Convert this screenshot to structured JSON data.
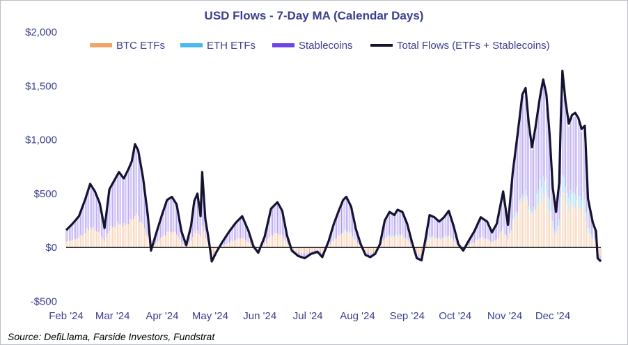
{
  "chart_data": {
    "type": "bar",
    "title": "USD Flows - 7-Day MA (Calendar Days)",
    "xlabel": "",
    "ylabel": "",
    "ylim": [
      -500,
      2000
    ],
    "yticks": [
      2000,
      1500,
      1000,
      500,
      0,
      -500
    ],
    "ytick_labels": [
      "$2,000",
      "$1,500",
      "$1,000",
      "$500",
      "$0",
      "-$500"
    ],
    "xticks": [
      "Feb '24",
      "Mar '24",
      "Apr '24",
      "May '24",
      "Jun '24",
      "Jul '24",
      "Aug '24",
      "Sep '24",
      "Oct '24",
      "Nov '24",
      "Dec '24"
    ],
    "x_start": "2024-02-01",
    "x_end": "2024-12-31",
    "stacked": true,
    "grid": false,
    "legend": "top",
    "total_flows": [
      [
        "2024-02-01",
        160
      ],
      [
        "2024-02-05",
        220
      ],
      [
        "2024-02-09",
        290
      ],
      [
        "2024-02-13",
        450
      ],
      [
        "2024-02-16",
        590
      ],
      [
        "2024-02-19",
        520
      ],
      [
        "2024-02-22",
        410
      ],
      [
        "2024-02-25",
        180
      ],
      [
        "2024-02-28",
        540
      ],
      [
        "2024-03-02",
        620
      ],
      [
        "2024-03-05",
        700
      ],
      [
        "2024-03-08",
        640
      ],
      [
        "2024-03-11",
        730
      ],
      [
        "2024-03-13",
        800
      ],
      [
        "2024-03-15",
        960
      ],
      [
        "2024-03-17",
        900
      ],
      [
        "2024-03-20",
        650
      ],
      [
        "2024-03-23",
        300
      ],
      [
        "2024-03-25",
        -30
      ],
      [
        "2024-03-28",
        120
      ],
      [
        "2024-04-01",
        310
      ],
      [
        "2024-04-04",
        440
      ],
      [
        "2024-04-07",
        470
      ],
      [
        "2024-04-10",
        400
      ],
      [
        "2024-04-13",
        150
      ],
      [
        "2024-04-16",
        20
      ],
      [
        "2024-04-19",
        200
      ],
      [
        "2024-04-21",
        430
      ],
      [
        "2024-04-23",
        500
      ],
      [
        "2024-04-25",
        290
      ],
      [
        "2024-04-26",
        700
      ],
      [
        "2024-04-28",
        260
      ],
      [
        "2024-04-30",
        80
      ],
      [
        "2024-05-02",
        -130
      ],
      [
        "2024-05-05",
        -40
      ],
      [
        "2024-05-09",
        60
      ],
      [
        "2024-05-13",
        150
      ],
      [
        "2024-05-17",
        230
      ],
      [
        "2024-05-21",
        290
      ],
      [
        "2024-05-25",
        150
      ],
      [
        "2024-05-28",
        10
      ],
      [
        "2024-05-31",
        -50
      ],
      [
        "2024-06-04",
        100
      ],
      [
        "2024-06-08",
        360
      ],
      [
        "2024-06-12",
        420
      ],
      [
        "2024-06-15",
        340
      ],
      [
        "2024-06-18",
        110
      ],
      [
        "2024-06-21",
        -30
      ],
      [
        "2024-06-25",
        -80
      ],
      [
        "2024-06-29",
        -100
      ],
      [
        "2024-07-03",
        -60
      ],
      [
        "2024-07-07",
        -40
      ],
      [
        "2024-07-10",
        -90
      ],
      [
        "2024-07-14",
        60
      ],
      [
        "2024-07-17",
        210
      ],
      [
        "2024-07-20",
        330
      ],
      [
        "2024-07-23",
        440
      ],
      [
        "2024-07-25",
        470
      ],
      [
        "2024-07-28",
        380
      ],
      [
        "2024-07-31",
        170
      ],
      [
        "2024-08-03",
        30
      ],
      [
        "2024-08-06",
        -70
      ],
      [
        "2024-08-09",
        -90
      ],
      [
        "2024-08-12",
        -60
      ],
      [
        "2024-08-15",
        30
      ],
      [
        "2024-08-18",
        250
      ],
      [
        "2024-08-21",
        330
      ],
      [
        "2024-08-24",
        300
      ],
      [
        "2024-08-26",
        350
      ],
      [
        "2024-08-29",
        330
      ],
      [
        "2024-09-01",
        220
      ],
      [
        "2024-09-04",
        50
      ],
      [
        "2024-09-07",
        -100
      ],
      [
        "2024-09-10",
        -120
      ],
      [
        "2024-09-12",
        40
      ],
      [
        "2024-09-15",
        300
      ],
      [
        "2024-09-18",
        280
      ],
      [
        "2024-09-21",
        240
      ],
      [
        "2024-09-24",
        280
      ],
      [
        "2024-09-27",
        340
      ],
      [
        "2024-09-30",
        200
      ],
      [
        "2024-10-03",
        30
      ],
      [
        "2024-10-06",
        -30
      ],
      [
        "2024-10-09",
        50
      ],
      [
        "2024-10-13",
        150
      ],
      [
        "2024-10-17",
        280
      ],
      [
        "2024-10-21",
        240
      ],
      [
        "2024-10-24",
        140
      ],
      [
        "2024-10-27",
        220
      ],
      [
        "2024-10-31",
        520
      ],
      [
        "2024-11-03",
        210
      ],
      [
        "2024-11-06",
        700
      ],
      [
        "2024-11-09",
        1050
      ],
      [
        "2024-11-12",
        1420
      ],
      [
        "2024-11-14",
        1480
      ],
      [
        "2024-11-16",
        1150
      ],
      [
        "2024-11-18",
        930
      ],
      [
        "2024-11-20",
        1100
      ],
      [
        "2024-11-23",
        1400
      ],
      [
        "2024-11-25",
        1560
      ],
      [
        "2024-11-27",
        1420
      ],
      [
        "2024-11-29",
        1050
      ],
      [
        "2024-12-01",
        550
      ],
      [
        "2024-12-03",
        330
      ],
      [
        "2024-12-05",
        600
      ],
      [
        "2024-12-06",
        1200
      ],
      [
        "2024-12-07",
        1640
      ],
      [
        "2024-12-09",
        1350
      ],
      [
        "2024-12-11",
        1150
      ],
      [
        "2024-12-13",
        1230
      ],
      [
        "2024-12-15",
        1250
      ],
      [
        "2024-12-17",
        1200
      ],
      [
        "2024-12-19",
        1100
      ],
      [
        "2024-12-21",
        1130
      ],
      [
        "2024-12-23",
        450
      ],
      [
        "2024-12-26",
        230
      ],
      [
        "2024-12-28",
        150
      ],
      [
        "2024-12-29",
        -100
      ],
      [
        "2024-12-31",
        -130
      ]
    ],
    "series": [
      {
        "name": "BTC ETFs",
        "color": "#f0a36a",
        "type": "bar"
      },
      {
        "name": "ETH ETFs",
        "color": "#4bb8ee",
        "type": "bar"
      },
      {
        "name": "Stablecoins",
        "color": "#6c45e6",
        "type": "bar"
      },
      {
        "name": "Total Flows (ETFs + Stablecoins)",
        "color": "#141432",
        "type": "line"
      }
    ]
  },
  "source": "Source: DefiLlama, Farside Investors, Fundstrat"
}
